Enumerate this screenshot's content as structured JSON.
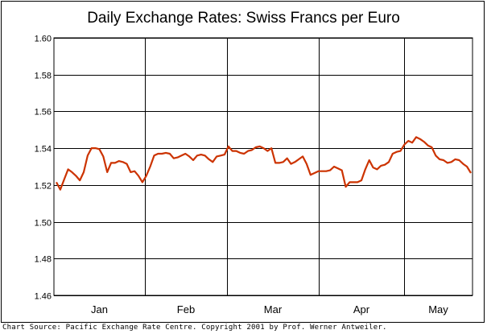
{
  "chart_data": {
    "type": "line",
    "title": "Daily Exchange Rates: Swiss Francs per Euro",
    "xlabel": "",
    "ylabel": "",
    "ylim": [
      1.46,
      1.6
    ],
    "yticks": [
      "1.46",
      "1.48",
      "1.50",
      "1.52",
      "1.54",
      "1.56",
      "1.58",
      "1.60"
    ],
    "xticks": [
      "Jan",
      "Feb",
      "Mar",
      "Apr",
      "May"
    ],
    "grid": true,
    "line_color": "#cc3300",
    "series": [
      {
        "values": [
          1.5215,
          1.5175,
          1.523,
          1.5285,
          1.527,
          1.525,
          1.5225,
          1.527,
          1.536,
          1.54,
          1.54,
          1.5395,
          1.5355,
          1.527,
          1.532,
          1.532,
          1.533,
          1.5325,
          1.5315,
          1.527,
          1.5275,
          1.525,
          1.5215,
          1.525,
          1.53,
          1.536,
          1.537,
          1.537,
          1.5375,
          1.537,
          1.5345,
          1.535,
          1.536,
          1.537,
          1.5355,
          1.5335,
          1.536,
          1.5365,
          1.536,
          1.534,
          1.5325,
          1.5355,
          1.536,
          1.5365,
          1.541,
          1.5385,
          1.5385,
          1.5375,
          1.537,
          1.5385,
          1.539,
          1.5405,
          1.541,
          1.54,
          1.5385,
          1.54,
          1.532,
          1.532,
          1.5325,
          1.5345,
          1.5315,
          1.5325,
          1.534,
          1.5355,
          1.5315,
          1.5255,
          1.5265,
          1.5275,
          1.5275,
          1.5275,
          1.528,
          1.53,
          1.529,
          1.528,
          1.519,
          1.5215,
          1.5215,
          1.5215,
          1.5225,
          1.5285,
          1.5335,
          1.5295,
          1.5285,
          1.5305,
          1.531,
          1.5325,
          1.537,
          1.538,
          1.5385,
          1.542,
          1.544,
          1.543,
          1.546,
          1.545,
          1.5435,
          1.5415,
          1.5405,
          1.536,
          1.534,
          1.5335,
          1.532,
          1.5325,
          1.534,
          1.5335,
          1.5315,
          1.53,
          1.5265
        ]
      }
    ]
  },
  "footer": {
    "source": "Chart Source: Pacific Exchange Rate Centre. Copyright 2001 by Prof. Werner Antweiler."
  }
}
